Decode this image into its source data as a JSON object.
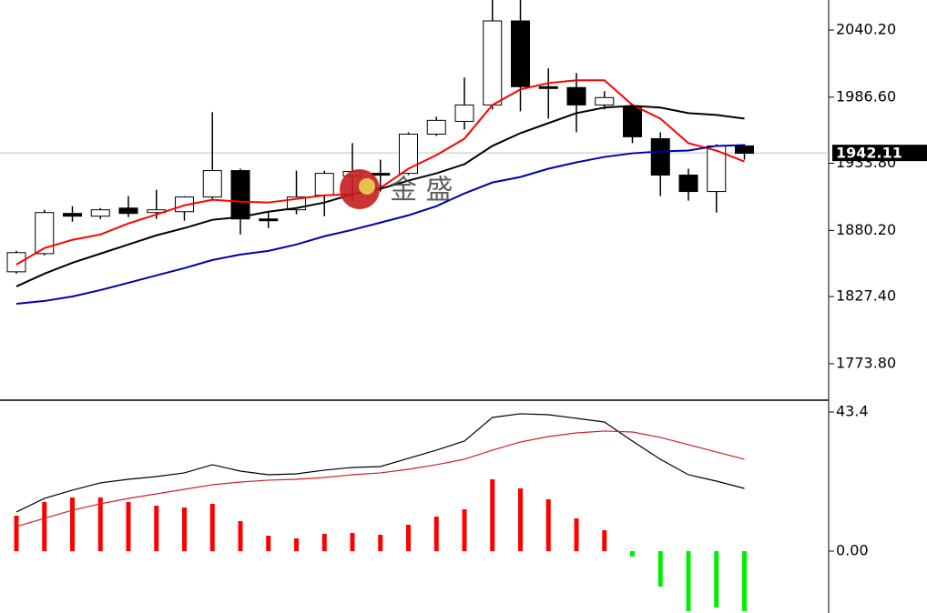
{
  "chart_data": [
    {
      "type": "candlestick",
      "categories": [
        null,
        null,
        null,
        null,
        null,
        null,
        null,
        null,
        null,
        null,
        null,
        null,
        null,
        null,
        null,
        null,
        null,
        null,
        null,
        null,
        null,
        null,
        null,
        null,
        null,
        null,
        null
      ],
      "open": [
        1847.2,
        1861.7,
        1893.8,
        1891.6,
        1898.1,
        1894.5,
        1895.2,
        1906.9,
        1928.0,
        1889.4,
        1896.7,
        1908.3,
        1923.6,
        1925.8,
        1925.8,
        1957.1,
        1967.3,
        1980.4,
        2047.5,
        1995.0,
        1994.3,
        1980.4,
        1979.0,
        1953.5,
        1924.4,
        1911.3,
        1947.7
      ],
      "high": [
        1863.9,
        1896.7,
        1899.6,
        1898.1,
        1907.6,
        1912.7,
        1907.6,
        1974.6,
        1929.5,
        1895.2,
        1928.0,
        1928.0,
        1949.9,
        1936.7,
        1958.6,
        1971.0,
        2002.3,
        2064.2,
        2064.2,
        2009.6,
        2005.9,
        1991.4,
        1980.4,
        1958.6,
        1929.5,
        1949.1,
        1949.1
      ],
      "low": [
        1845.7,
        1860.3,
        1887.2,
        1889.4,
        1890.9,
        1889.4,
        1888.0,
        1905.4,
        1877.0,
        1882.1,
        1893.0,
        1891.6,
        1904.0,
        1911.3,
        1924.4,
        1955.7,
        1960.8,
        1976.8,
        1975.3,
        1969.5,
        1958.6,
        1976.8,
        1949.9,
        1907.6,
        1904.0,
        1894.5,
        1936.7
      ],
      "close": [
        1862.5,
        1894.5,
        1891.6,
        1896.7,
        1893.8,
        1896.7,
        1906.9,
        1928.0,
        1889.4,
        1888.0,
        1906.9,
        1925.8,
        1927.3,
        1924.4,
        1957.1,
        1968.1,
        1980.4,
        2047.5,
        1995.0,
        1994.3,
        1980.4,
        1986.3,
        1955.0,
        1924.4,
        1911.3,
        1947.7,
        1941.8
      ],
      "up_color": "#ffffff",
      "down_color": "#000000",
      "series": [
        {
          "color": "#ff0000",
          "values": [
            1853.0,
            1866.1,
            1872.7,
            1877.0,
            1885.8,
            1893.0,
            1900.3,
            1904.7,
            1903.2,
            1902.5,
            1905.4,
            1908.3,
            1909.1,
            1914.2,
            1929.5,
            1940.4,
            1953.5,
            1980.4,
            1992.8,
            1997.9,
            2000.1,
            2000.1,
            1980.4,
            1969.5,
            1949.9,
            1944.0,
            1935.3
          ]
        },
        {
          "color": "#000000",
          "values": [
            1835.5,
            1845.7,
            1854.4,
            1861.7,
            1869.0,
            1876.3,
            1882.1,
            1888.7,
            1890.9,
            1895.2,
            1898.1,
            1902.5,
            1909.1,
            1913.4,
            1920.0,
            1925.8,
            1933.1,
            1947.7,
            1957.9,
            1965.9,
            1973.9,
            1978.3,
            1979.7,
            1978.3,
            1973.9,
            1972.4,
            1969.5
          ]
        },
        {
          "color": "#0000aa",
          "values": [
            1821.7,
            1823.9,
            1827.5,
            1832.6,
            1838.4,
            1844.3,
            1850.1,
            1856.6,
            1861.0,
            1863.9,
            1869.0,
            1875.6,
            1880.7,
            1886.5,
            1892.3,
            1899.6,
            1909.8,
            1918.5,
            1922.9,
            1929.5,
            1934.6,
            1938.9,
            1941.8,
            1943.3,
            1944.0,
            1947.7,
            1948.4
          ]
        }
      ],
      "ylim": [
        1744.7,
        2064.2
      ],
      "yticks": [
        {
          "value": 1773.8,
          "label": "1773.80"
        },
        {
          "value": 1827.4,
          "label": "1827.40"
        },
        {
          "value": 1880.2,
          "label": "1880.20"
        },
        {
          "value": 1933.8,
          "label": "1933.80"
        },
        {
          "value": 1986.6,
          "label": "1986.60"
        },
        {
          "value": 2040.2,
          "label": "2040.20"
        }
      ],
      "current_price": 1942.11,
      "watermark": "金 盛"
    },
    {
      "type": "macd",
      "categories": [
        null,
        null,
        null,
        null,
        null,
        null,
        null,
        null,
        null,
        null,
        null,
        null,
        null,
        null,
        null,
        null,
        null,
        null,
        null,
        null,
        null,
        null,
        null,
        null,
        null,
        null,
        null
      ],
      "values": [
        11.06,
        15.32,
        16.74,
        16.74,
        15.32,
        14.18,
        13.62,
        14.75,
        9.36,
        4.82,
        3.97,
        5.39,
        5.67,
        5.11,
        8.23,
        10.78,
        13.05,
        22.41,
        19.57,
        16.17,
        10.21,
        6.52,
        -1.7,
        -11.06,
        -18.72,
        -17.59,
        -18.72
      ],
      "up_color": "#ff0000",
      "down_color": "#00ee00",
      "series": [
        {
          "color": "#000000",
          "values": [
            12.2,
            16.45,
            19.01,
            21.28,
            22.41,
            23.26,
            24.4,
            26.95,
            24.96,
            23.83,
            24.11,
            25.25,
            26.1,
            26.38,
            28.94,
            31.49,
            34.33,
            41.7,
            42.84,
            42.55,
            41.42,
            40.28,
            34.33,
            28.65,
            23.83,
            21.84,
            19.57
          ]
        },
        {
          "color": "#cc2222",
          "values": [
            7.66,
            10.21,
            12.77,
            14.75,
            16.45,
            17.87,
            19.29,
            20.71,
            21.56,
            22.13,
            22.41,
            22.98,
            23.83,
            24.4,
            25.53,
            26.95,
            28.65,
            31.49,
            34.04,
            35.74,
            36.88,
            37.45,
            37.16,
            35.46,
            33.19,
            30.92,
            28.65
          ]
        }
      ],
      "ylim": [
        -19.3,
        46.8
      ],
      "yticks": [
        {
          "value": 0,
          "label": "0.00"
        },
        43.4
      ]
    }
  ]
}
